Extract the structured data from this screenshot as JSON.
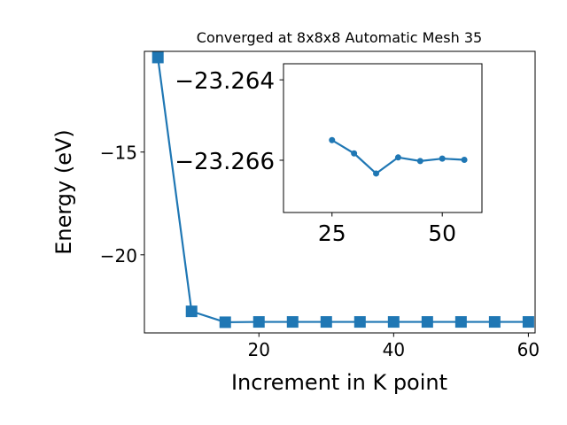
{
  "chart_data": [
    {
      "type": "line",
      "title": "Converged at 8x8x8 Automatic Mesh 35",
      "xlabel": "Increment in K point",
      "ylabel": "Energy (eV)",
      "xlim": [
        3,
        61
      ],
      "ylim": [
        -23.8,
        -10.1
      ],
      "xticks": [
        20,
        40,
        60
      ],
      "xtick_labels": [
        "20",
        "40",
        "60"
      ],
      "yticks": [
        -15,
        -20
      ],
      "ytick_labels": [
        "−15",
        "−20"
      ],
      "grid": false,
      "series": [
        {
          "marker": "square",
          "color": "#1f77b4",
          "x": [
            5,
            10,
            15,
            20,
            25,
            30,
            35,
            40,
            45,
            50,
            55,
            60
          ],
          "y": [
            -10.4,
            -22.75,
            -23.28,
            -23.265,
            -23.265,
            -23.265,
            -23.265,
            -23.265,
            -23.265,
            -23.265,
            -23.265,
            -23.265
          ]
        }
      ]
    },
    {
      "type": "line",
      "title": "",
      "xlim": [
        14,
        59
      ],
      "ylim": [
        -23.2673,
        -23.2636
      ],
      "xticks": [
        25,
        50
      ],
      "xtick_labels": [
        "25",
        "50"
      ],
      "yticks": [
        -23.266,
        -23.264
      ],
      "ytick_labels": [
        "−23.266",
        "−23.264"
      ],
      "grid": false,
      "series": [
        {
          "marker": "circle",
          "color": "#1f77b4",
          "x": [
            25,
            30,
            35,
            40,
            45,
            50,
            55
          ],
          "y": [
            -23.2655,
            -23.26583,
            -23.26633,
            -23.26593,
            -23.26602,
            -23.26596,
            -23.26599
          ]
        }
      ]
    }
  ]
}
